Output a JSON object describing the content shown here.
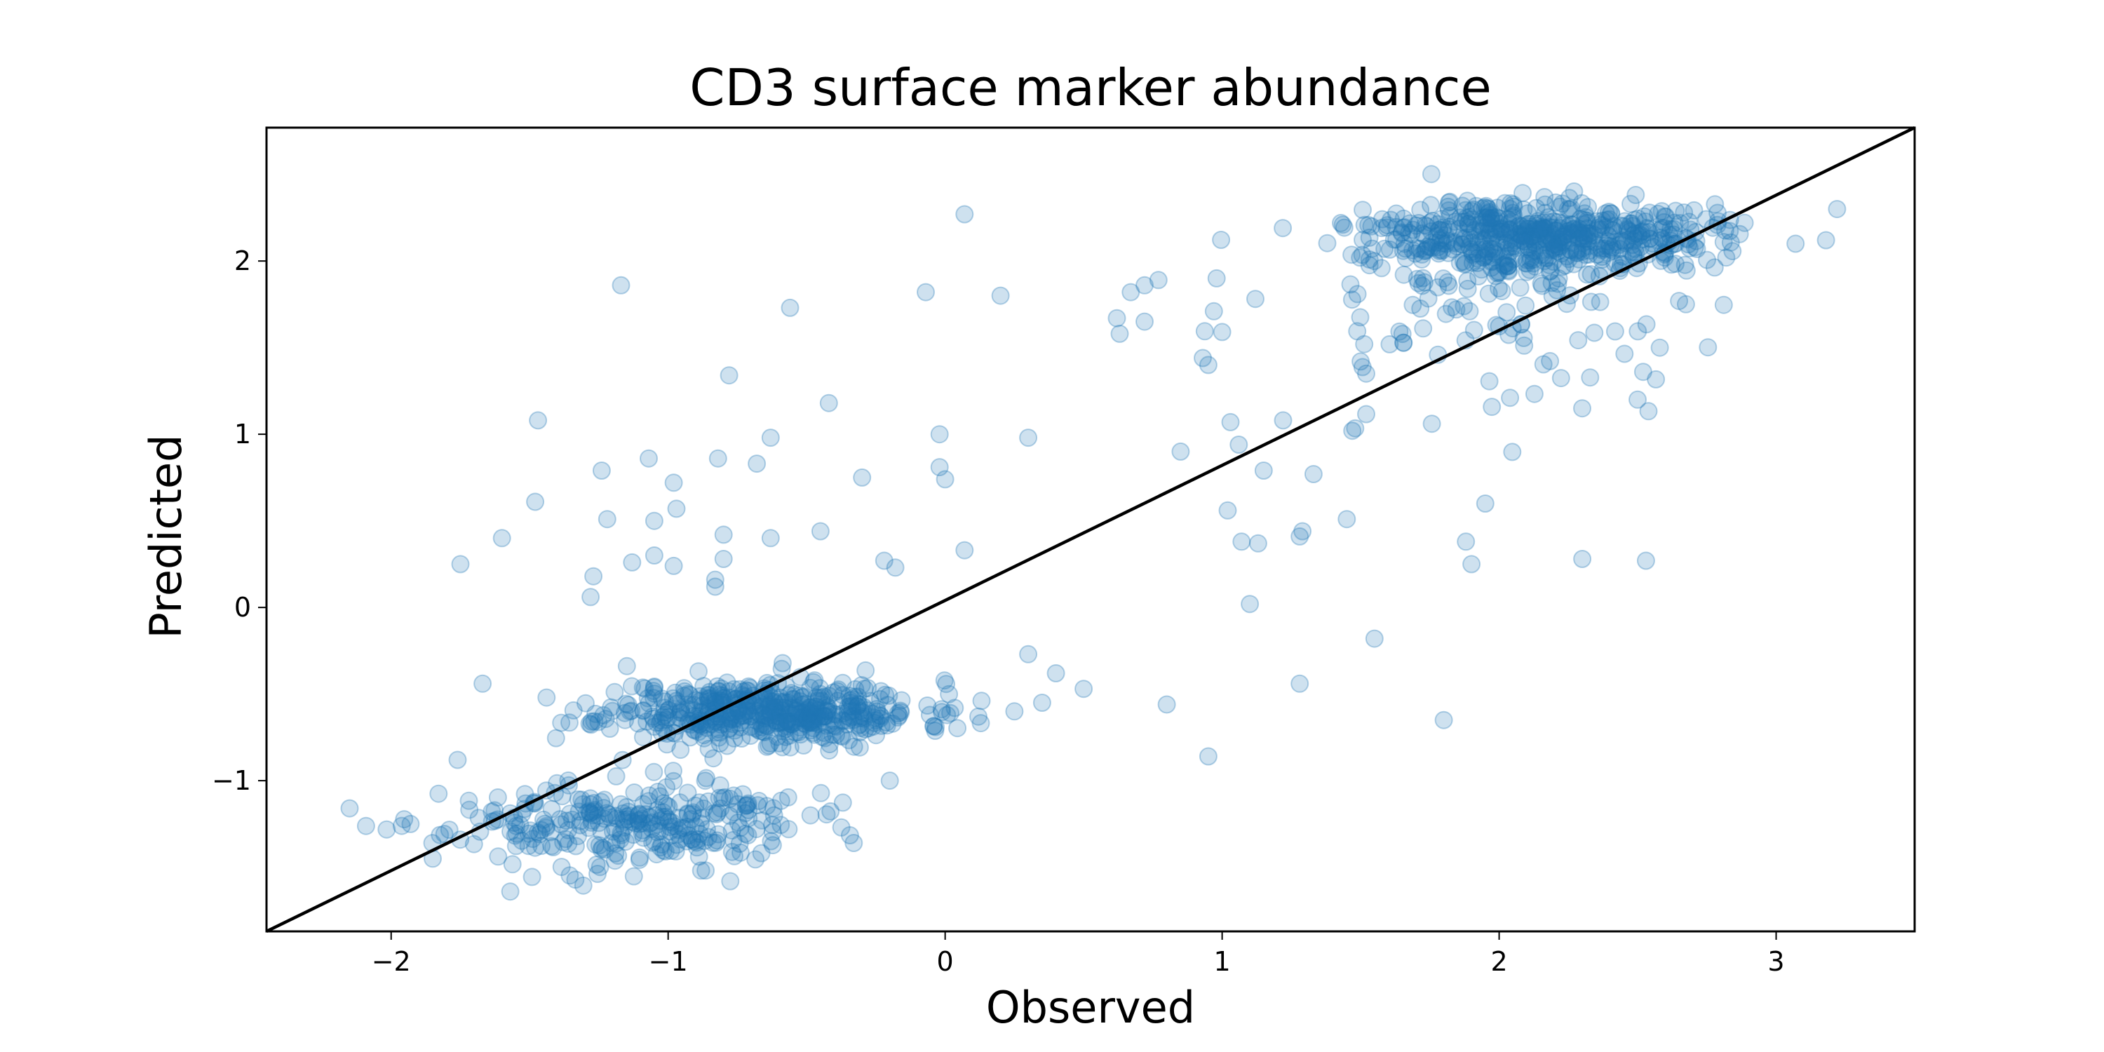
{
  "chart_data": {
    "type": "scatter",
    "title": "CD3 surface marker abundance",
    "xlabel": "Observed",
    "ylabel": "Predicted",
    "xlim": [
      -2.45,
      3.5
    ],
    "ylim": [
      -1.87,
      2.77
    ],
    "xticks": [
      -2,
      -1,
      0,
      1,
      2,
      3
    ],
    "yticks": [
      -1,
      0,
      1,
      2
    ],
    "xtick_labels": [
      "−2",
      "−1",
      "0",
      "1",
      "2",
      "3"
    ],
    "ytick_labels": [
      "−1",
      "0",
      "1",
      "2"
    ],
    "reference_line": {
      "label": "",
      "points": [
        [
          -2.45,
          -1.87
        ],
        [
          3.5,
          2.77
        ]
      ]
    },
    "grid": false,
    "point_color": "#1f77b4",
    "point_alpha": 0.22,
    "clusters": [
      {
        "name": "",
        "center": [
          -0.65,
          -0.6
        ],
        "spread": [
          0.28,
          0.09
        ],
        "count": 520,
        "seed": 11
      },
      {
        "name": "",
        "center": [
          -1.15,
          -1.25
        ],
        "spread": [
          0.32,
          0.12
        ],
        "count": 300,
        "seed": 23
      },
      {
        "name": "",
        "center": [
          2.15,
          2.15
        ],
        "spread": [
          0.3,
          0.1
        ],
        "count": 560,
        "seed": 37
      },
      {
        "name": "",
        "center": [
          2.0,
          1.75
        ],
        "spread": [
          0.4,
          0.3
        ],
        "count": 110,
        "seed": 53
      }
    ],
    "points": [
      [
        -2.15,
        -1.16
      ],
      [
        -1.85,
        -1.45
      ],
      [
        -1.75,
        0.25
      ],
      [
        -1.6,
        0.4
      ],
      [
        -1.47,
        1.08
      ],
      [
        -1.48,
        0.61
      ],
      [
        -1.17,
        1.86
      ],
      [
        -1.24,
        0.79
      ],
      [
        -1.22,
        0.51
      ],
      [
        -1.27,
        0.18
      ],
      [
        -1.28,
        0.06
      ],
      [
        -1.13,
        0.26
      ],
      [
        -1.07,
        0.86
      ],
      [
        -1.05,
        0.5
      ],
      [
        -0.98,
        0.72
      ],
      [
        -0.97,
        0.57
      ],
      [
        -1.05,
        0.3
      ],
      [
        -0.98,
        0.24
      ],
      [
        -0.82,
        0.86
      ],
      [
        -0.8,
        0.42
      ],
      [
        -0.8,
        0.28
      ],
      [
        -0.83,
        0.16
      ],
      [
        -0.83,
        0.12
      ],
      [
        -0.78,
        1.34
      ],
      [
        -0.68,
        0.83
      ],
      [
        -0.63,
        0.98
      ],
      [
        -0.63,
        0.4
      ],
      [
        -0.45,
        0.44
      ],
      [
        -0.42,
        1.18
      ],
      [
        -0.3,
        0.75
      ],
      [
        -0.56,
        1.73
      ],
      [
        -0.22,
        0.27
      ],
      [
        -0.18,
        0.23
      ],
      [
        -0.07,
        1.82
      ],
      [
        0.07,
        2.27
      ],
      [
        0.2,
        1.8
      ],
      [
        -0.02,
        1.0
      ],
      [
        -0.02,
        0.81
      ],
      [
        0.0,
        0.74
      ],
      [
        0.07,
        0.33
      ],
      [
        0.3,
        0.98
      ],
      [
        0.62,
        1.67
      ],
      [
        0.63,
        1.58
      ],
      [
        0.67,
        1.82
      ],
      [
        0.72,
        1.86
      ],
      [
        0.77,
        1.89
      ],
      [
        0.72,
        1.65
      ],
      [
        0.8,
        -0.56
      ],
      [
        0.85,
        0.9
      ],
      [
        0.93,
        1.44
      ],
      [
        0.95,
        1.4
      ],
      [
        0.97,
        1.71
      ],
      [
        0.98,
        1.9
      ],
      [
        1.0,
        1.59
      ],
      [
        1.02,
        0.56
      ],
      [
        1.06,
        0.94
      ],
      [
        1.03,
        1.07
      ],
      [
        1.07,
        0.38
      ],
      [
        1.13,
        0.37
      ],
      [
        1.1,
        0.02
      ],
      [
        0.95,
        -0.86
      ],
      [
        1.15,
        0.79
      ],
      [
        1.22,
        1.08
      ],
      [
        1.28,
        0.41
      ],
      [
        1.29,
        0.44
      ],
      [
        1.33,
        0.77
      ],
      [
        1.28,
        -0.44
      ],
      [
        1.45,
        0.51
      ],
      [
        1.47,
        1.02
      ],
      [
        1.55,
        -0.18
      ],
      [
        1.52,
        1.35
      ],
      [
        1.5,
        1.42
      ],
      [
        1.88,
        0.38
      ],
      [
        1.9,
        0.25
      ],
      [
        1.95,
        0.6
      ],
      [
        1.8,
        -0.65
      ],
      [
        2.3,
        0.28
      ],
      [
        2.53,
        0.27
      ],
      [
        2.5,
        1.2
      ],
      [
        2.58,
        1.5
      ],
      [
        2.52,
        1.36
      ],
      [
        0.25,
        -0.6
      ],
      [
        0.4,
        -0.38
      ],
      [
        0.5,
        -0.47
      ],
      [
        0.35,
        -0.55
      ],
      [
        0.12,
        -0.63
      ],
      [
        0.3,
        -0.27
      ],
      [
        -1.67,
        -0.44
      ],
      [
        -1.76,
        -0.88
      ],
      [
        -1.93,
        -1.25
      ],
      [
        -0.2,
        -1.0
      ],
      [
        -0.33,
        -1.36
      ],
      [
        -1.57,
        -1.64
      ],
      [
        3.22,
        2.3
      ],
      [
        3.18,
        2.12
      ],
      [
        3.07,
        2.1
      ]
    ]
  }
}
